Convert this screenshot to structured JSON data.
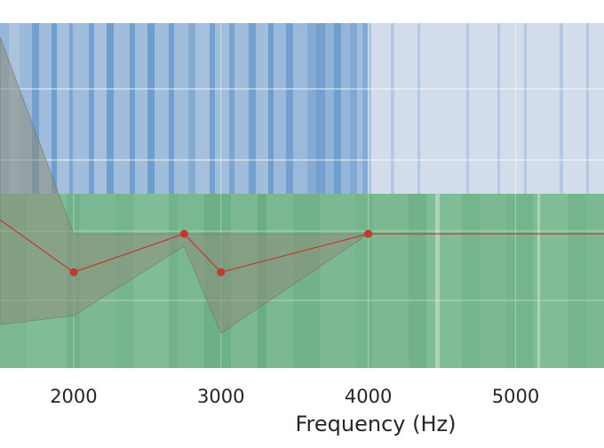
{
  "chart_data": {
    "type": "line",
    "xlabel": "Frequency (Hz)",
    "xlim": [
      1500,
      5600
    ],
    "x_ticks": [
      "2000",
      "3000",
      "4000",
      "5000"
    ],
    "x_tick_values": [
      2000,
      3000,
      4000,
      5000
    ],
    "grid": true,
    "bands": [
      {
        "label": "",
        "color": "#8eb1d8",
        "stripe_color": "#3f7fbf"
      },
      {
        "label": "",
        "color": "#7fbf98",
        "stripe_color": "#3e9360"
      }
    ],
    "series": [
      {
        "color": "#c0392b",
        "band_color": "#8c8c7a",
        "points": [
          {
            "x": 1500,
            "y": 0.85
          },
          {
            "x": 2000,
            "y": 0.55
          },
          {
            "x": 2750,
            "y": 0.77
          },
          {
            "x": 3000,
            "y": 0.55
          },
          {
            "x": 4000,
            "y": 0.77
          },
          {
            "x": 5600,
            "y": 0.77
          }
        ],
        "markers": [
          2000,
          2750,
          3000,
          4000
        ],
        "upper": [
          1.9,
          0.77,
          0.77,
          0.77,
          0.77,
          0.77
        ],
        "lower": [
          0.25,
          0.3,
          0.7,
          0.2,
          0.77,
          0.77
        ]
      }
    ]
  }
}
